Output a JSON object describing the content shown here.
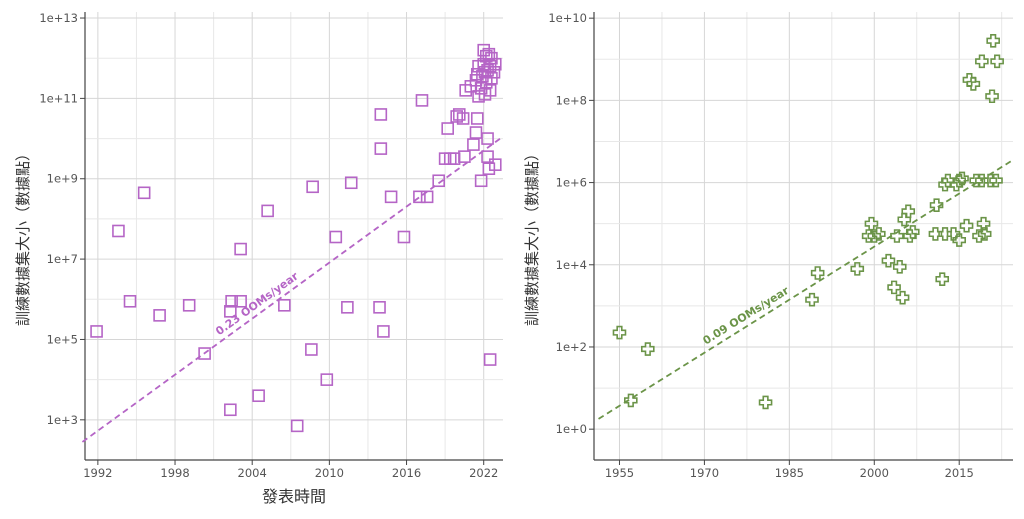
{
  "chart_data": [
    {
      "type": "scatter",
      "x_scale": "linear",
      "y_scale": "log10",
      "xlim": [
        1991,
        2023.5
      ],
      "ylim_log10": [
        2.0,
        13.15
      ],
      "xticks": [
        1992,
        1998,
        2004,
        2010,
        2016,
        2022
      ],
      "xtick_labels": [
        "1992",
        "1998",
        "2004",
        "2010",
        "2016",
        "2022"
      ],
      "yticks_log10": [
        3,
        5,
        7,
        9,
        11,
        13
      ],
      "ytick_labels": [
        "1e+3",
        "1e+5",
        "1e+7",
        "1e+9",
        "1e+11",
        "1e+13"
      ],
      "xlabel": "發表時間",
      "ylabel": "訓練數據集大小（數據點）",
      "marker": "square",
      "color": "#b565c6",
      "grid": true,
      "trend": {
        "label": "0.23 OOMs/year",
        "from": [
          1990.8,
          2.45
        ],
        "to": [
          2023.5,
          10.05
        ]
      },
      "points": [
        [
          1991.9,
          5.2
        ],
        [
          1993.6,
          7.7
        ],
        [
          1994.5,
          5.95
        ],
        [
          1995.6,
          8.65
        ],
        [
          1996.8,
          5.6
        ],
        [
          1999.1,
          5.85
        ],
        [
          2000.3,
          4.65
        ],
        [
          2002.3,
          3.25
        ],
        [
          2002.3,
          5.7
        ],
        [
          2002.4,
          5.95
        ],
        [
          2003.1,
          5.95
        ],
        [
          2003.1,
          7.25
        ],
        [
          2004.5,
          3.6
        ],
        [
          2005.2,
          8.2
        ],
        [
          2006.5,
          5.85
        ],
        [
          2007.5,
          2.85
        ],
        [
          2008.6,
          4.75
        ],
        [
          2008.7,
          8.8
        ],
        [
          2009.8,
          4.0
        ],
        [
          2010.5,
          7.55
        ],
        [
          2011.4,
          5.8
        ],
        [
          2011.7,
          8.9
        ],
        [
          2013.9,
          5.8
        ],
        [
          2014.0,
          10.6
        ],
        [
          2014.0,
          9.75
        ],
        [
          2014.2,
          5.2
        ],
        [
          2014.8,
          8.55
        ],
        [
          2015.8,
          7.55
        ],
        [
          2017.0,
          8.55
        ],
        [
          2017.2,
          10.95
        ],
        [
          2017.6,
          8.55
        ],
        [
          2018.5,
          8.95
        ],
        [
          2019.0,
          9.5
        ],
        [
          2019.2,
          10.25
        ],
        [
          2019.4,
          9.5
        ],
        [
          2019.7,
          9.5
        ],
        [
          2019.9,
          10.55
        ],
        [
          2020.1,
          10.6
        ],
        [
          2020.4,
          10.5
        ],
        [
          2020.6,
          11.2
        ],
        [
          2020.5,
          9.55
        ],
        [
          2021.0,
          11.3
        ],
        [
          2021.2,
          9.85
        ],
        [
          2021.4,
          10.15
        ],
        [
          2021.4,
          11.45
        ],
        [
          2021.5,
          11.6
        ],
        [
          2021.6,
          11.8
        ],
        [
          2021.5,
          10.5
        ],
        [
          2021.6,
          11.05
        ],
        [
          2021.8,
          8.95
        ],
        [
          2021.8,
          11.25
        ],
        [
          2021.9,
          11.55
        ],
        [
          2022.0,
          12.2
        ],
        [
          2022.0,
          11.85
        ],
        [
          2022.1,
          11.1
        ],
        [
          2022.1,
          11.65
        ],
        [
          2022.2,
          11.4
        ],
        [
          2022.2,
          12.05
        ],
        [
          2022.3,
          9.55
        ],
        [
          2022.3,
          11.7
        ],
        [
          2022.4,
          12.1
        ],
        [
          2022.3,
          10.0
        ],
        [
          2022.4,
          9.25
        ],
        [
          2022.5,
          11.2
        ],
        [
          2022.5,
          11.8
        ],
        [
          2022.6,
          12.0
        ],
        [
          2022.6,
          11.5
        ],
        [
          2022.5,
          4.5
        ],
        [
          2022.8,
          11.65
        ],
        [
          2022.9,
          11.85
        ],
        [
          2022.9,
          9.35
        ]
      ]
    },
    {
      "type": "scatter",
      "x_scale": "linear",
      "y_scale": "log10",
      "xlim": [
        1950.5,
        2024.5
      ],
      "ylim_log10": [
        -0.75,
        10.15
      ],
      "xticks": [
        1955,
        1970,
        1985,
        2000,
        2015
      ],
      "xtick_labels": [
        "1955",
        "1970",
        "1985",
        "2000",
        "2015"
      ],
      "yticks_log10": [
        0,
        2,
        4,
        6,
        8,
        10
      ],
      "ytick_labels": [
        "1e+0",
        "1e+2",
        "1e+4",
        "1e+6",
        "1e+8",
        "1e+10"
      ],
      "xlabel": "",
      "ylabel": "訓練數據集大小（數據點）",
      "marker": "plus",
      "color": "#6b9448",
      "grid": true,
      "trend": {
        "label": "0.09 OOMs/year",
        "from": [
          1951.3,
          0.25
        ],
        "to": [
          2024.5,
          6.55
        ]
      },
      "points": [
        [
          1955.0,
          2.35
        ],
        [
          1957.0,
          0.7
        ],
        [
          1960.0,
          1.95
        ],
        [
          1980.8,
          0.65
        ],
        [
          1989.0,
          3.15
        ],
        [
          1990.0,
          3.8
        ],
        [
          1997.0,
          3.9
        ],
        [
          1999.0,
          4.7
        ],
        [
          1999.5,
          5.0
        ],
        [
          2000.0,
          4.7
        ],
        [
          2000.8,
          4.75
        ],
        [
          2002.5,
          4.1
        ],
        [
          2003.5,
          3.45
        ],
        [
          2004.0,
          4.7
        ],
        [
          2004.5,
          3.95
        ],
        [
          2005.0,
          3.2
        ],
        [
          2005.3,
          5.1
        ],
        [
          2006.0,
          5.3
        ],
        [
          2006.3,
          4.7
        ],
        [
          2006.8,
          4.8
        ],
        [
          2010.8,
          4.75
        ],
        [
          2011.0,
          5.45
        ],
        [
          2012.0,
          3.65
        ],
        [
          2012.5,
          4.75
        ],
        [
          2012.5,
          5.95
        ],
        [
          2013.0,
          6.05
        ],
        [
          2014.0,
          4.75
        ],
        [
          2014.5,
          5.95
        ],
        [
          2015.0,
          4.6
        ],
        [
          2015.0,
          6.05
        ],
        [
          2015.5,
          6.1
        ],
        [
          2016.3,
          4.95
        ],
        [
          2016.8,
          8.5
        ],
        [
          2017.5,
          8.4
        ],
        [
          2018.0,
          6.05
        ],
        [
          2018.5,
          4.7
        ],
        [
          2019.0,
          6.05
        ],
        [
          2019.0,
          8.95
        ],
        [
          2019.3,
          5.0
        ],
        [
          2019.5,
          4.75
        ],
        [
          2020.5,
          6.05
        ],
        [
          2020.8,
          8.1
        ],
        [
          2021.0,
          9.45
        ],
        [
          2021.5,
          6.05
        ],
        [
          2021.7,
          8.95
        ]
      ]
    }
  ]
}
